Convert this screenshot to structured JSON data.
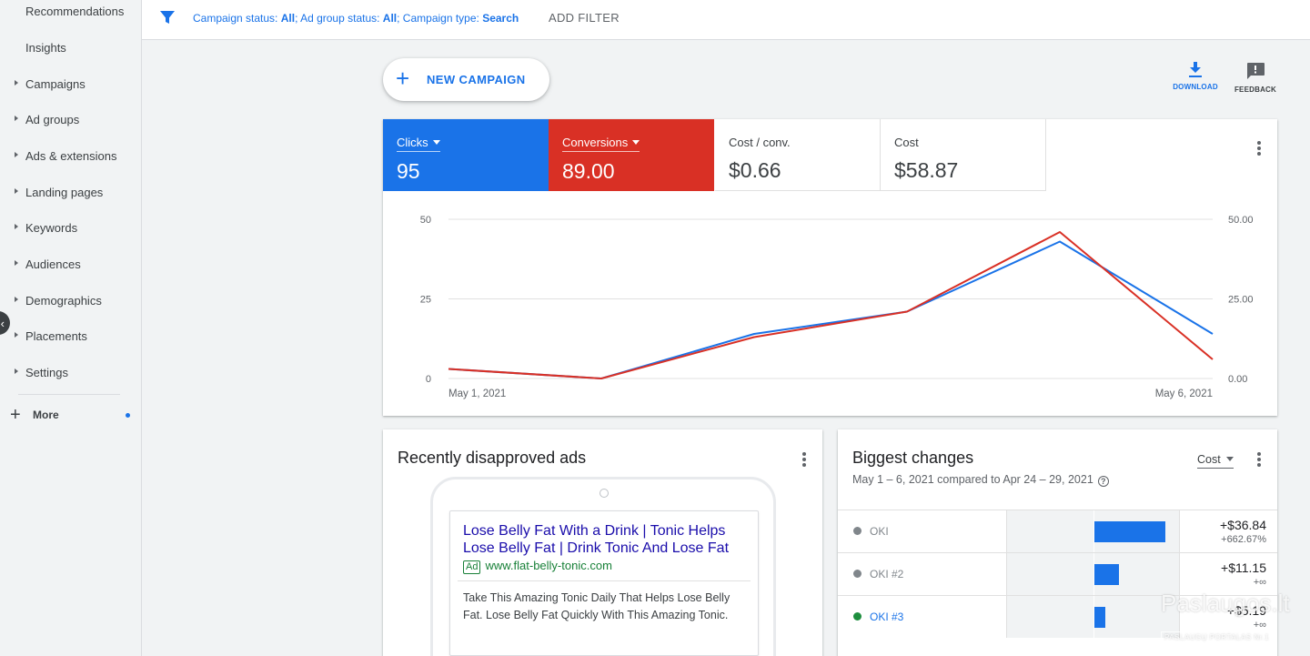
{
  "sidebar": {
    "items": [
      {
        "label": "Recommendations",
        "expandable": false
      },
      {
        "label": "Insights",
        "expandable": false
      },
      {
        "label": "Campaigns",
        "expandable": true
      },
      {
        "label": "Ad groups",
        "expandable": true
      },
      {
        "label": "Ads & extensions",
        "expandable": true
      },
      {
        "label": "Landing pages",
        "expandable": true
      },
      {
        "label": "Keywords",
        "expandable": true
      },
      {
        "label": "Audiences",
        "expandable": true
      },
      {
        "label": "Demographics",
        "expandable": true
      },
      {
        "label": "Placements",
        "expandable": true
      },
      {
        "label": "Settings",
        "expandable": true
      }
    ],
    "more_label": "More",
    "collapse_icon": "chevron-left-icon"
  },
  "filter_bar": {
    "icon": "filter-icon",
    "campaign_status_label": "Campaign status: ",
    "campaign_status_value": "All",
    "ad_group_status_label": "; Ad group status: ",
    "ad_group_status_value": "All",
    "campaign_type_label": "; Campaign type: ",
    "campaign_type_value": "Search",
    "add_filter_label": "ADD FILTER"
  },
  "toolbar": {
    "new_campaign_label": "NEW CAMPAIGN",
    "download_label": "DOWNLOAD",
    "feedback_label": "FEEDBACK"
  },
  "metrics": [
    {
      "label": "Clicks",
      "value": "95",
      "color": "#1a73e8",
      "selectable": true
    },
    {
      "label": "Conversions",
      "value": "89.00",
      "color": "#d93025",
      "selectable": true
    },
    {
      "label": "Cost / conv.",
      "value": "$0.66",
      "selectable": false
    },
    {
      "label": "Cost",
      "value": "$58.87",
      "selectable": false
    }
  ],
  "chart_data": {
    "type": "line",
    "x": [
      "May 1, 2021",
      "May 2, 2021",
      "May 3, 2021",
      "May 4, 2021",
      "May 5, 2021",
      "May 6, 2021"
    ],
    "x_tick_labels": [
      "May 1, 2021",
      "May 6, 2021"
    ],
    "left_ticks": [
      "50",
      "25",
      "0"
    ],
    "right_ticks": [
      "50.00",
      "25.00",
      "0.00"
    ],
    "ylim_left": [
      0,
      50
    ],
    "ylim_right": [
      0,
      50
    ],
    "series": [
      {
        "name": "Clicks",
        "axis": "left",
        "color": "#1a73e8",
        "values": [
          3,
          0,
          14,
          21,
          43,
          14
        ]
      },
      {
        "name": "Conversions",
        "axis": "right",
        "color": "#d93025",
        "values": [
          3,
          0,
          13,
          21,
          46,
          6
        ]
      }
    ],
    "grid": true
  },
  "disapproved_ads": {
    "title": "Recently disapproved ads",
    "ad": {
      "headline_1": "Lose Belly Fat With a Drink | Tonic Helps",
      "headline_2": "Lose Belly Fat | Drink Tonic And Lose Fat",
      "badge": "Ad",
      "url": "www.flat-belly-tonic.com",
      "description": "Take This Amazing Tonic Daily That Helps Lose Belly Fat. Lose Belly Fat Quickly With This Amazing Tonic."
    }
  },
  "biggest_changes": {
    "title": "Biggest changes",
    "subtitle": "May 1 – 6, 2021 compared to Apr 24 – 29, 2021",
    "metric_select": "Cost",
    "rows": [
      {
        "name": "OKI",
        "status_color": "#80868b",
        "name_color": "#80868b",
        "change": "+$36.84",
        "pct": "+662.67%",
        "fraction": 1.0
      },
      {
        "name": "OKI #2",
        "status_color": "#80868b",
        "name_color": "#80868b",
        "change": "+$11.15",
        "pct": "+∞",
        "fraction": 0.35
      },
      {
        "name": "OKI #3",
        "status_color": "#1e8e3e",
        "name_color": "#1a73e8",
        "change": "+$5.19",
        "pct": "+∞",
        "fraction": 0.16
      }
    ]
  },
  "watermark": {
    "main": "Paslaugos.lt",
    "sub": "PASLAUGŲ PORTALAS Nr.1"
  }
}
